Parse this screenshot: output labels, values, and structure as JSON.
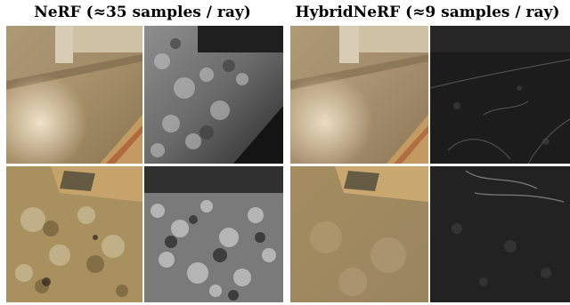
{
  "figure": {
    "columns": [
      {
        "title": "NeRF (≈35 samples / ray)"
      },
      {
        "title": "HybridNeRF (≈9 samples / ray)"
      }
    ]
  },
  "colors": {
    "background": "#ffffff",
    "floor_light": "#b8a27e",
    "floor_dark": "#8a7452",
    "wall": "#d7cbb3",
    "rug": "#c7a36c",
    "heatmap_low": "#1a1a1a",
    "heatmap_high": "#d9d9d9"
  }
}
